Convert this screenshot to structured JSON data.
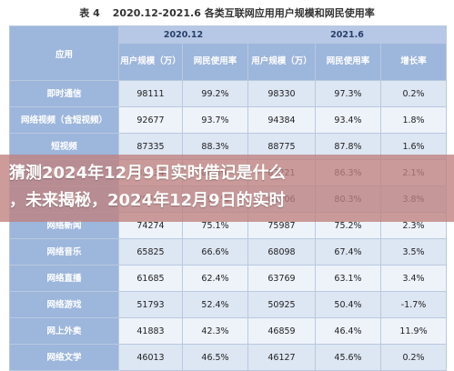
{
  "caption": {
    "number": "表 4",
    "title": "2020.12-2021.6 各类互联网应用用户规模和网民使用率"
  },
  "table": {
    "period_header": {
      "app": "应用",
      "p1": "2020.12",
      "p2": "2021.6"
    },
    "columns": {
      "users1": "用户规模（万）",
      "rate1": "网民使用率",
      "users2": "用户规模（万）",
      "rate2": "网民使用率",
      "growth": "增长率"
    },
    "rows": [
      {
        "app": "即时通信",
        "u1": "98111",
        "r1": "99.2%",
        "u2": "98330",
        "r2": "97.3%",
        "g": "0.2%"
      },
      {
        "app": "网络视频（含短视频）",
        "u1": "92677",
        "r1": "93.7%",
        "u2": "94384",
        "r2": "93.4%",
        "g": "1.8%"
      },
      {
        "app": "短视频",
        "u1": "87335",
        "r1": "88.3%",
        "u2": "88775",
        "r2": "87.8%",
        "g": "1.6%"
      },
      {
        "app": "网络支付",
        "u1": "85434",
        "r1": "86.4%",
        "u2": "87221",
        "r2": "86.3%",
        "g": "2.1%"
      },
      {
        "app": "网络购物",
        "u1": "78241",
        "r1": "79.1%",
        "u2": "81206",
        "r2": "80.3%",
        "g": "3.8%"
      },
      {
        "app": "网络新闻",
        "u1": "74274",
        "r1": "75.1%",
        "u2": "75987",
        "r2": "75.2%",
        "g": "2.3%"
      },
      {
        "app": "网络音乐",
        "u1": "65825",
        "r1": "66.6%",
        "u2": "68098",
        "r2": "67.4%",
        "g": "3.5%"
      },
      {
        "app": "网络直播",
        "u1": "61685",
        "r1": "62.4%",
        "u2": "63769",
        "r2": "63.1%",
        "g": "3.4%"
      },
      {
        "app": "网络游戏",
        "u1": "51793",
        "r1": "52.4%",
        "u2": "50925",
        "r2": "50.4%",
        "g": "-1.7%"
      },
      {
        "app": "网上外卖",
        "u1": "41883",
        "r1": "42.3%",
        "u2": "46859",
        "r2": "46.4%",
        "g": "11.9%"
      },
      {
        "app": "网络文学",
        "u1": "46013",
        "r1": "46.5%",
        "u2": "46127",
        "r2": "45.6%",
        "g": "0.2%"
      }
    ]
  },
  "banner": {
    "line1": "猜测2024年12月9日实时借记是什么",
    "line2": "，未来揭秘，2024年12月9日的实时"
  }
}
